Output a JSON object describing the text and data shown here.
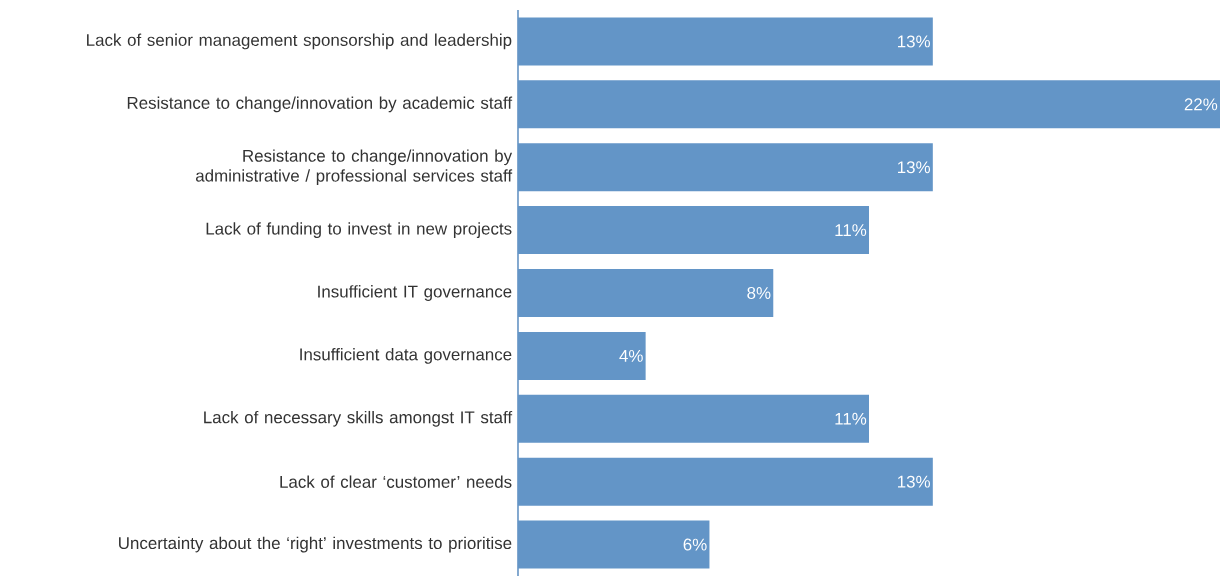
{
  "chart_data": {
    "type": "bar",
    "orientation": "horizontal",
    "color": "#6395c7",
    "categories": [
      "Lack of senior management sponsorship and leadership",
      "Resistance to change/innovation by academic staff",
      "Resistance to change/innovation by administrative / professional services staff",
      "Lack of funding to invest in new projects",
      "Insufficient IT governance",
      "Insufficient data governance",
      "Lack of necessary skills amongst IT staff",
      "Lack of clear ‘customer’ needs",
      "Uncertainty about the ‘right’ investments to prioritise"
    ],
    "values": [
      13,
      22,
      13,
      11,
      8,
      4,
      11,
      13,
      6
    ],
    "value_labels": [
      "13%",
      "22%",
      "13%",
      "11%",
      "8%",
      "4%",
      "11%",
      "13%",
      "6%"
    ]
  }
}
